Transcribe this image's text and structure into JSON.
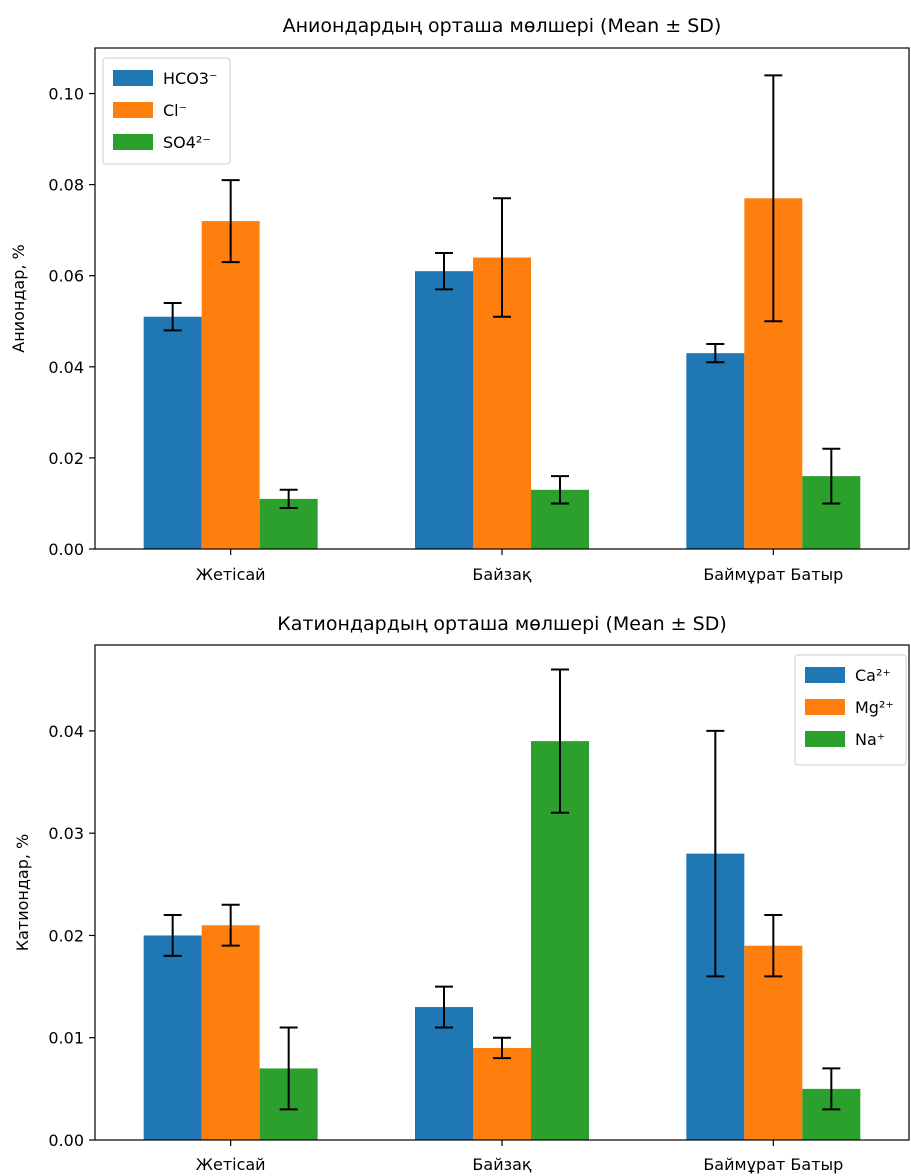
{
  "chart_data": [
    {
      "type": "bar",
      "title": "Аниондардың орташа мөлшері (Mean ± SD)",
      "xlabel": "",
      "ylabel": "Аниондар, %",
      "categories": [
        "Жетісай",
        "Байзақ",
        "Баймұрат Батыр"
      ],
      "ylim": [
        0,
        0.11
      ],
      "yticks": [
        0.0,
        0.02,
        0.04,
        0.06,
        0.08,
        0.1
      ],
      "ytick_labels": [
        "0.00",
        "0.02",
        "0.04",
        "0.06",
        "0.08",
        "0.10"
      ],
      "legend_position": "top-left",
      "series": [
        {
          "name": "HCO3⁻",
          "color": "#1f77b4",
          "values": [
            0.051,
            0.061,
            0.043
          ],
          "errors": [
            0.003,
            0.004,
            0.002
          ]
        },
        {
          "name": "Cl⁻",
          "color": "#ff7f0e",
          "values": [
            0.072,
            0.064,
            0.077
          ],
          "errors": [
            0.009,
            0.013,
            0.027
          ]
        },
        {
          "name": "SO4²⁻",
          "color": "#2ca02c",
          "values": [
            0.011,
            0.013,
            0.016
          ],
          "errors": [
            0.002,
            0.003,
            0.006
          ]
        }
      ]
    },
    {
      "type": "bar",
      "title": "Катиондардың орташа мөлшері (Mean ± SD)",
      "xlabel": "",
      "ylabel": "Катиондар, %",
      "categories": [
        "Жетісай",
        "Байзақ",
        "Баймұрат Батыр"
      ],
      "ylim": [
        0,
        0.0484
      ],
      "yticks": [
        0.0,
        0.01,
        0.02,
        0.03,
        0.04
      ],
      "ytick_labels": [
        "0.00",
        "0.01",
        "0.02",
        "0.03",
        "0.04"
      ],
      "legend_position": "top-right",
      "series": [
        {
          "name": "Ca²⁺",
          "color": "#1f77b4",
          "values": [
            0.02,
            0.013,
            0.028
          ],
          "errors": [
            0.002,
            0.002,
            0.012
          ]
        },
        {
          "name": "Mg²⁺",
          "color": "#ff7f0e",
          "values": [
            0.021,
            0.009,
            0.019
          ],
          "errors": [
            0.002,
            0.001,
            0.003
          ]
        },
        {
          "name": "Na⁺",
          "color": "#2ca02c",
          "values": [
            0.007,
            0.039,
            0.005
          ],
          "errors": [
            0.004,
            0.007,
            0.002
          ]
        }
      ]
    }
  ]
}
